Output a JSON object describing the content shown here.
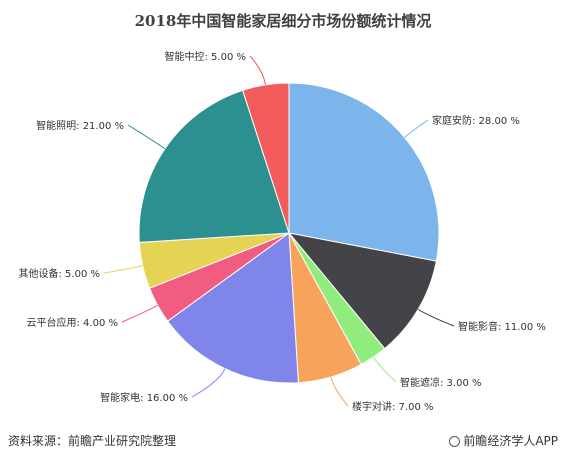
{
  "chart_data": {
    "type": "pie",
    "title": "2018年中国智能家居细分市场份额统计情况",
    "categories": [
      "家庭安防",
      "智能影音",
      "智能遮凉",
      "楼宇对讲",
      "智能家电",
      "云平台应用",
      "其他设备",
      "智能照明",
      "智能中控"
    ],
    "values": [
      28.0,
      11.0,
      3.0,
      7.0,
      16.0,
      4.0,
      5.0,
      21.0,
      5.0
    ],
    "labels": [
      "家庭安防: 28.00 %",
      "智能影音: 11.00 %",
      "智能遮凉: 3.00 %",
      "楼宇对讲: 7.00 %",
      "智能家电: 16.00 %",
      "云平台应用: 4.00 %",
      "其他设备: 5.00 %",
      "智能照明: 21.00 %",
      "智能中控: 5.00 %"
    ],
    "colors": [
      "#7cb5ec",
      "#434348",
      "#90ed7d",
      "#f7a35c",
      "#8085e9",
      "#f15c80",
      "#e4d354",
      "#2b908f",
      "#f45b5b"
    ],
    "legend": "none"
  },
  "footer": {
    "source": "资料来源：前瞻产业研究院整理",
    "brand": "前瞻经济学人APP"
  }
}
